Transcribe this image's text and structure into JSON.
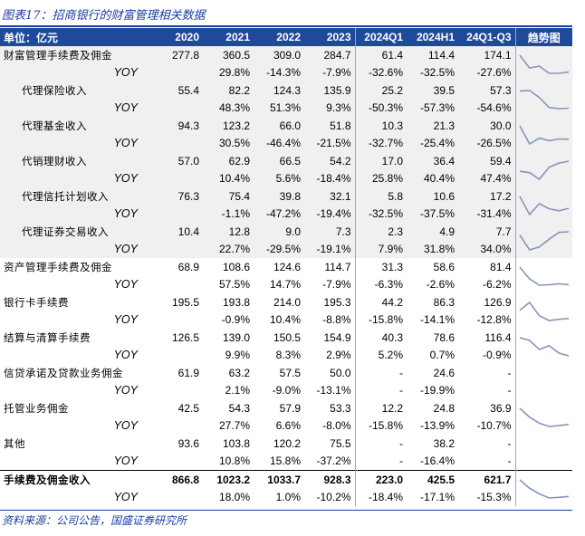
{
  "title": "图表17：招商银行的财富管理相关数据",
  "source": "资料来源：公司公告，国盛证券研究所",
  "colors": {
    "header_bg": "#1f4a9c",
    "title_blue": "#1a3fa0",
    "spark": "#8796b8",
    "shade": "#f0f0f0"
  },
  "table": {
    "headers": [
      "单位：亿元",
      "2020",
      "2021",
      "2022",
      "2023",
      "2024Q1",
      "2024H1",
      "24Q1-Q3",
      "趋势图"
    ],
    "groups": [
      {
        "label": "财富管理手续费及佣金",
        "indent": false,
        "shaded": true,
        "bold": false,
        "values": [
          "277.8",
          "360.5",
          "309.0",
          "284.7",
          "61.4",
          "114.4",
          "174.1"
        ],
        "yoy_label": "YOY",
        "yoy": [
          "",
          "29.8%",
          "-14.3%",
          "-7.9%",
          "-32.6%",
          "-32.5%",
          "-27.6%"
        ],
        "trend": [
          29.8,
          -14.3,
          -7.9,
          -32.6,
          -32.5,
          -27.6
        ]
      },
      {
        "label": "代理保险收入",
        "indent": true,
        "shaded": true,
        "bold": false,
        "values": [
          "55.4",
          "82.2",
          "124.3",
          "135.9",
          "25.2",
          "39.5",
          "57.3"
        ],
        "yoy_label": "YOY",
        "yoy": [
          "",
          "48.3%",
          "51.3%",
          "9.3%",
          "-50.3%",
          "-57.3%",
          "-54.6%"
        ],
        "trend": [
          48.3,
          51.3,
          9.3,
          -50.3,
          -57.3,
          -54.6
        ]
      },
      {
        "label": "代理基金收入",
        "indent": true,
        "shaded": true,
        "bold": false,
        "values": [
          "94.3",
          "123.2",
          "66.0",
          "51.8",
          "10.3",
          "21.3",
          "30.0"
        ],
        "yoy_label": "YOY",
        "yoy": [
          "",
          "30.5%",
          "-46.4%",
          "-21.5%",
          "-32.7%",
          "-25.4%",
          "-26.5%"
        ],
        "trend": [
          30.5,
          -46.4,
          -21.5,
          -32.7,
          -25.4,
          -26.5
        ]
      },
      {
        "label": "代销理财收入",
        "indent": true,
        "shaded": true,
        "bold": false,
        "values": [
          "57.0",
          "62.9",
          "66.5",
          "54.2",
          "17.0",
          "36.4",
          "59.4"
        ],
        "yoy_label": "YOY",
        "yoy": [
          "",
          "10.4%",
          "5.6%",
          "-18.4%",
          "25.8%",
          "40.4%",
          "47.4%"
        ],
        "trend": [
          10.4,
          5.6,
          -18.4,
          25.8,
          40.4,
          47.4
        ]
      },
      {
        "label": "代理信托计划收入",
        "indent": true,
        "shaded": true,
        "bold": false,
        "values": [
          "76.3",
          "75.4",
          "39.8",
          "32.1",
          "5.8",
          "10.6",
          "17.2"
        ],
        "yoy_label": "YOY",
        "yoy": [
          "",
          "-1.1%",
          "-47.2%",
          "-19.4%",
          "-32.5%",
          "-37.5%",
          "-31.4%"
        ],
        "trend": [
          -1.1,
          -47.2,
          -19.4,
          -32.5,
          -37.5,
          -31.4
        ]
      },
      {
        "label": "代理证券交易收入",
        "indent": true,
        "shaded": true,
        "bold": false,
        "values": [
          "10.4",
          "12.8",
          "9.0",
          "7.3",
          "2.3",
          "4.9",
          "7.7"
        ],
        "yoy_label": "YOY",
        "yoy": [
          "",
          "22.7%",
          "-29.5%",
          "-19.1%",
          "7.9%",
          "31.8%",
          "34.0%"
        ],
        "trend": [
          22.7,
          -29.5,
          -19.1,
          7.9,
          31.8,
          34.0
        ]
      },
      {
        "label": "资产管理手续费及佣金",
        "indent": false,
        "shaded": false,
        "bold": false,
        "values": [
          "68.9",
          "108.6",
          "124.6",
          "114.7",
          "31.3",
          "58.6",
          "81.4"
        ],
        "yoy_label": "YOY",
        "yoy": [
          "",
          "57.5%",
          "14.7%",
          "-7.9%",
          "-6.3%",
          "-2.6%",
          "-6.2%"
        ],
        "trend": [
          57.5,
          14.7,
          -7.9,
          -6.3,
          -2.6,
          -6.2
        ]
      },
      {
        "label": "银行卡手续费",
        "indent": false,
        "shaded": false,
        "bold": false,
        "values": [
          "195.5",
          "193.8",
          "214.0",
          "195.3",
          "44.2",
          "86.3",
          "126.9"
        ],
        "yoy_label": "YOY",
        "yoy": [
          "",
          "-0.9%",
          "10.4%",
          "-8.8%",
          "-15.8%",
          "-14.1%",
          "-12.8%"
        ],
        "trend": [
          -0.9,
          10.4,
          -8.8,
          -15.8,
          -14.1,
          -12.8
        ]
      },
      {
        "label": "结算与清算手续费",
        "indent": false,
        "shaded": false,
        "bold": false,
        "values": [
          "126.5",
          "139.0",
          "150.5",
          "154.9",
          "40.3",
          "78.6",
          "116.4"
        ],
        "yoy_label": "YOY",
        "yoy": [
          "",
          "9.9%",
          "8.3%",
          "2.9%",
          "5.2%",
          "0.7%",
          "-0.9%"
        ],
        "trend": [
          9.9,
          8.3,
          2.9,
          5.2,
          0.7,
          -0.9
        ]
      },
      {
        "label": "信贷承诺及贷款业务佣金",
        "indent": false,
        "shaded": false,
        "bold": false,
        "values": [
          "61.9",
          "63.2",
          "57.5",
          "50.0",
          "-",
          "24.6",
          "-"
        ],
        "yoy_label": "YOY",
        "yoy": [
          "",
          "2.1%",
          "-9.0%",
          "-13.1%",
          "-",
          "-19.9%",
          "-"
        ],
        "trend": []
      },
      {
        "label": "托管业务佣金",
        "indent": false,
        "shaded": false,
        "bold": false,
        "values": [
          "42.5",
          "54.3",
          "57.9",
          "53.3",
          "12.2",
          "24.8",
          "36.9"
        ],
        "yoy_label": "YOY",
        "yoy": [
          "",
          "27.7%",
          "6.6%",
          "-8.0%",
          "-15.8%",
          "-13.9%",
          "-10.7%"
        ],
        "trend": [
          27.7,
          6.6,
          -8.0,
          -15.8,
          -13.9,
          -10.7
        ]
      },
      {
        "label": "其他",
        "indent": false,
        "shaded": false,
        "bold": false,
        "values": [
          "93.6",
          "103.8",
          "120.2",
          "75.5",
          "-",
          "38.2",
          "-"
        ],
        "yoy_label": "YOY",
        "yoy": [
          "",
          "10.8%",
          "15.8%",
          "-37.2%",
          "-",
          "-16.4%",
          "-"
        ],
        "trend": []
      },
      {
        "label": "手续费及佣金收入",
        "indent": false,
        "shaded": false,
        "bold": true,
        "values": [
          "866.8",
          "1023.2",
          "1033.7",
          "928.3",
          "223.0",
          "425.5",
          "621.7"
        ],
        "yoy_label": "YOY",
        "yoy": [
          "",
          "18.0%",
          "1.0%",
          "-10.2%",
          "-18.4%",
          "-17.1%",
          "-15.3%"
        ],
        "trend": [
          18.0,
          1.0,
          -10.2,
          -18.4,
          -17.1,
          -15.3
        ]
      }
    ]
  }
}
